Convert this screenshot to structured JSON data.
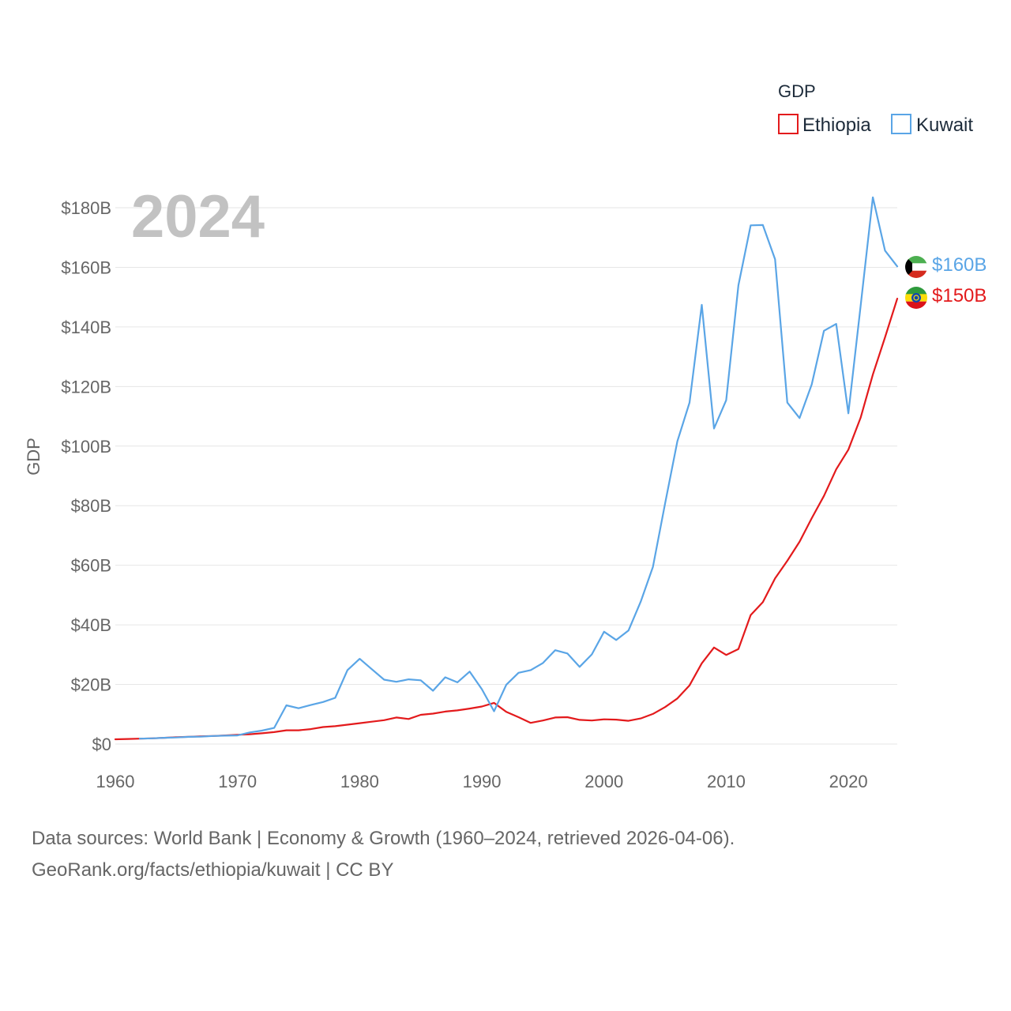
{
  "chart_data": {
    "type": "line",
    "year_label": "2024",
    "ylabel": "GDP",
    "xlabel": "",
    "xlim": [
      1960,
      2024
    ],
    "ylim": [
      0,
      180
    ],
    "y_unit": "billion USD",
    "x_ticks": [
      1960,
      1970,
      1980,
      1990,
      2000,
      2010,
      2020
    ],
    "x_tick_labels": [
      "1960",
      "1970",
      "1980",
      "1990",
      "2000",
      "2010",
      "2020"
    ],
    "y_ticks": [
      0,
      20,
      40,
      60,
      80,
      100,
      120,
      140,
      160,
      180
    ],
    "y_tick_labels": [
      "$0",
      "$20B",
      "$40B",
      "$60B",
      "$80B",
      "$100B",
      "$120B",
      "$140B",
      "$160B",
      "$180B"
    ],
    "legend": {
      "title": "GDP",
      "position": "top-right",
      "entries": [
        "Ethiopia",
        "Kuwait"
      ]
    },
    "series": [
      {
        "name": "Ethiopia",
        "color": "#e31a1c",
        "end_label": "$150B",
        "x": [
          1960,
          1961,
          1962,
          1963,
          1964,
          1965,
          1966,
          1967,
          1968,
          1969,
          1970,
          1971,
          1972,
          1973,
          1974,
          1975,
          1976,
          1977,
          1978,
          1979,
          1980,
          1981,
          1982,
          1983,
          1984,
          1985,
          1986,
          1987,
          1988,
          1989,
          1990,
          1991,
          1992,
          1993,
          1994,
          1995,
          1996,
          1997,
          1998,
          1999,
          2000,
          2001,
          2002,
          2003,
          2004,
          2005,
          2006,
          2007,
          2008,
          2009,
          2010,
          2011,
          2012,
          2013,
          2014,
          2015,
          2016,
          2017,
          2018,
          2019,
          2020,
          2021,
          2022,
          2023,
          2024
        ],
        "values": [
          1.6,
          1.7,
          1.8,
          1.9,
          2.1,
          2.3,
          2.4,
          2.6,
          2.7,
          2.9,
          3.1,
          3.3,
          3.6,
          4.0,
          4.6,
          4.6,
          5.0,
          5.7,
          6.0,
          6.5,
          7.0,
          7.5,
          8.0,
          8.9,
          8.4,
          9.8,
          10.2,
          10.9,
          11.3,
          11.9,
          12.6,
          13.8,
          10.8,
          9.0,
          7.1,
          7.9,
          8.9,
          9.0,
          8.1,
          7.9,
          8.3,
          8.2,
          7.8,
          8.6,
          10.1,
          12.4,
          15.3,
          19.7,
          27.1,
          32.4,
          29.9,
          31.9,
          43.3,
          47.6,
          55.6,
          61.5,
          67.9,
          75.8,
          83.3,
          92.2,
          98.8,
          109.5,
          124.0,
          136.5,
          149.5
        ]
      },
      {
        "name": "Kuwait",
        "color": "#5aa5e6",
        "end_label": "$160B",
        "x": [
          1962,
          1963,
          1964,
          1965,
          1966,
          1967,
          1968,
          1969,
          1970,
          1971,
          1972,
          1973,
          1974,
          1975,
          1976,
          1977,
          1978,
          1979,
          1980,
          1981,
          1982,
          1983,
          1984,
          1985,
          1986,
          1987,
          1988,
          1989,
          1990,
          1991,
          1992,
          1993,
          1994,
          1995,
          1996,
          1997,
          1998,
          1999,
          2000,
          2001,
          2002,
          2003,
          2004,
          2005,
          2006,
          2007,
          2008,
          2009,
          2010,
          2011,
          2012,
          2013,
          2014,
          2015,
          2016,
          2017,
          2018,
          2019,
          2020,
          2021,
          2022,
          2023,
          2024
        ],
        "values": [
          1.8,
          1.9,
          2.1,
          2.2,
          2.4,
          2.5,
          2.7,
          2.8,
          2.9,
          3.9,
          4.5,
          5.4,
          13.0,
          12.0,
          13.1,
          14.1,
          15.5,
          24.8,
          28.6,
          25.1,
          21.6,
          20.9,
          21.7,
          21.4,
          17.9,
          22.4,
          20.7,
          24.3,
          18.4,
          11.0,
          19.9,
          23.9,
          24.8,
          27.2,
          31.5,
          30.4,
          25.9,
          30.1,
          37.7,
          34.9,
          38.1,
          47.8,
          59.4,
          80.8,
          101.6,
          114.6,
          147.4,
          105.9,
          115.4,
          154.0,
          174.1,
          174.2,
          162.7,
          114.6,
          109.4,
          120.7,
          138.7,
          141.0,
          111.0,
          147.0,
          183.5,
          165.6,
          160.3
        ]
      }
    ]
  },
  "footer": {
    "line1": "Data sources: World Bank | Economy & Growth (1960–2024, retrieved 2026-04-06).",
    "line2": "GeoRank.org/facts/ethiopia/kuwait | CC BY"
  }
}
